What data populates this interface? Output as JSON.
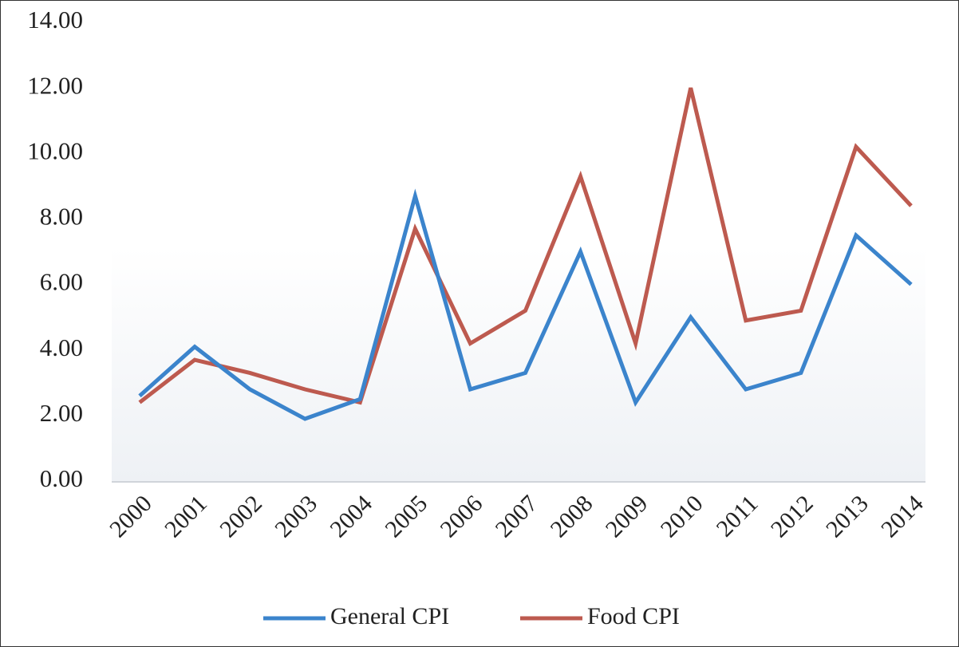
{
  "chart_data": {
    "type": "line",
    "categories": [
      "2000",
      "2001",
      "2002",
      "2003",
      "2004",
      "2005",
      "2006",
      "2007",
      "2008",
      "2009",
      "2010",
      "2011",
      "2012",
      "2013",
      "2014"
    ],
    "series": [
      {
        "name": "General CPI",
        "color": "#3b84cc",
        "values": [
          2.6,
          4.1,
          2.8,
          1.9,
          2.5,
          8.7,
          2.8,
          3.3,
          7.0,
          2.4,
          5.0,
          2.8,
          3.3,
          7.5,
          6.0
        ]
      },
      {
        "name": "Food CPI",
        "color": "#bd5a4f",
        "values": [
          2.4,
          3.7,
          3.3,
          2.8,
          2.4,
          7.7,
          4.2,
          5.2,
          9.3,
          4.2,
          12.0,
          4.9,
          5.2,
          10.2,
          8.4
        ]
      }
    ],
    "ylim": [
      0,
      14
    ],
    "yticks": [
      {
        "value": 0,
        "label": "0.00"
      },
      {
        "value": 2,
        "label": "2.00"
      },
      {
        "value": 4,
        "label": "4.00"
      },
      {
        "value": 6,
        "label": "6.00"
      },
      {
        "value": 8,
        "label": "8.00"
      },
      {
        "value": 10,
        "label": "10.00"
      },
      {
        "value": 12,
        "label": "12.00"
      },
      {
        "value": 14,
        "label": "14.00"
      }
    ],
    "grid": false,
    "legend": "bottom"
  }
}
